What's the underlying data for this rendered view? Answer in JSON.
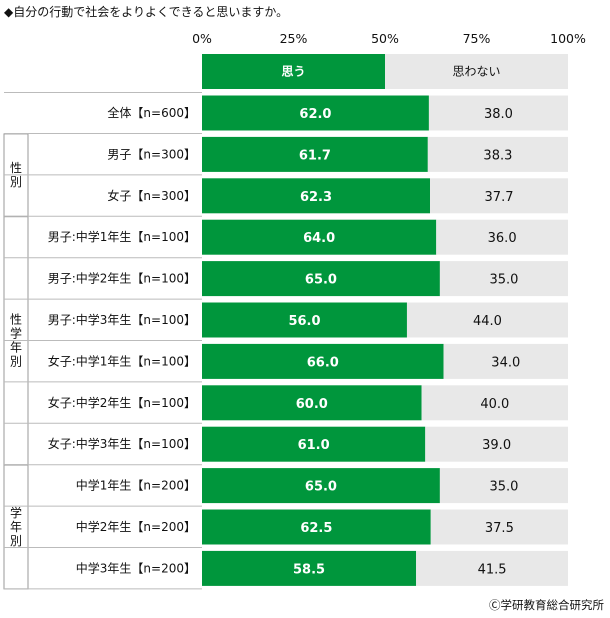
{
  "title": "◆自分の行動で社会をよりよくできると思いますか。",
  "copyright": "Ⓒ学研教育総合研究所",
  "chart_data": {
    "type": "bar",
    "orientation": "horizontal",
    "stacked": true,
    "xlim": [
      0,
      100
    ],
    "ticks": [
      "0%",
      "25%",
      "50%",
      "75%",
      "100%"
    ],
    "legend_labels": [
      "思う",
      "思わない"
    ],
    "colors": [
      "#00963c",
      "#e8e8e8"
    ],
    "categories": [
      "全体【n=600】",
      "男子【n=300】",
      "女子【n=300】",
      "男子:中学1年生【n=100】",
      "男子:中学2年生【n=100】",
      "男子:中学3年生【n=100】",
      "女子:中学1年生【n=100】",
      "女子:中学2年生【n=100】",
      "女子:中学3年生【n=100】",
      "中学1年生【n=200】",
      "中学2年生【n=200】",
      "中学3年生【n=200】"
    ],
    "series": [
      {
        "name": "思う",
        "values": [
          62.0,
          61.7,
          62.3,
          64.0,
          65.0,
          56.0,
          66.0,
          60.0,
          61.0,
          65.0,
          62.5,
          58.5
        ],
        "labels": [
          "62.0",
          "61.7",
          "62.3",
          "64.0",
          "65.0",
          "56.0",
          "66.0",
          "60.0",
          "61.0",
          "65.0",
          "62.5",
          "58.5"
        ]
      },
      {
        "name": "思わない",
        "values": [
          38.0,
          38.3,
          37.7,
          36.0,
          35.0,
          44.0,
          34.0,
          40.0,
          39.0,
          35.0,
          37.5,
          41.5
        ],
        "labels": [
          "38.0",
          "38.3",
          "37.7",
          "36.0",
          "35.0",
          "44.0",
          "34.0",
          "40.0",
          "39.0",
          "35.0",
          "37.5",
          "41.5"
        ]
      }
    ],
    "groups": [
      {
        "label": "性別",
        "rows": [
          1,
          2
        ]
      },
      {
        "label": "性学年別",
        "rows": [
          3,
          4,
          5,
          6,
          7,
          8
        ]
      },
      {
        "label": "学年別",
        "rows": [
          9,
          10,
          11
        ]
      }
    ]
  }
}
